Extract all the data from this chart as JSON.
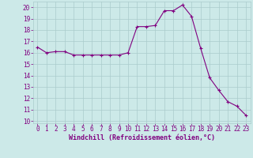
{
  "x": [
    0,
    1,
    2,
    3,
    4,
    5,
    6,
    7,
    8,
    9,
    10,
    11,
    12,
    13,
    14,
    15,
    16,
    17,
    18,
    19,
    20,
    21,
    22,
    23
  ],
  "y": [
    16.5,
    16.0,
    16.1,
    16.1,
    15.8,
    15.8,
    15.8,
    15.8,
    15.8,
    15.8,
    16.0,
    18.3,
    18.3,
    18.4,
    19.7,
    19.7,
    20.2,
    19.2,
    16.4,
    13.8,
    12.7,
    11.7,
    11.3,
    10.5
  ],
  "line_color": "#800080",
  "marker": "+",
  "marker_size": 3,
  "bg_color": "#cce9e8",
  "grid_color": "#aacccc",
  "xlabel": "Windchill (Refroidissement éolien,°C)",
  "xlabel_color": "#800080",
  "tick_color": "#800080",
  "label_color": "#800080",
  "ylim": [
    9.8,
    20.5
  ],
  "xlim": [
    -0.5,
    23.5
  ],
  "yticks": [
    10,
    11,
    12,
    13,
    14,
    15,
    16,
    17,
    18,
    19,
    20
  ],
  "xticks": [
    0,
    1,
    2,
    3,
    4,
    5,
    6,
    7,
    8,
    9,
    10,
    11,
    12,
    13,
    14,
    15,
    16,
    17,
    18,
    19,
    20,
    21,
    22,
    23
  ],
  "tick_fontsize": 5.5,
  "xlabel_fontsize": 6.0,
  "linewidth": 0.8
}
